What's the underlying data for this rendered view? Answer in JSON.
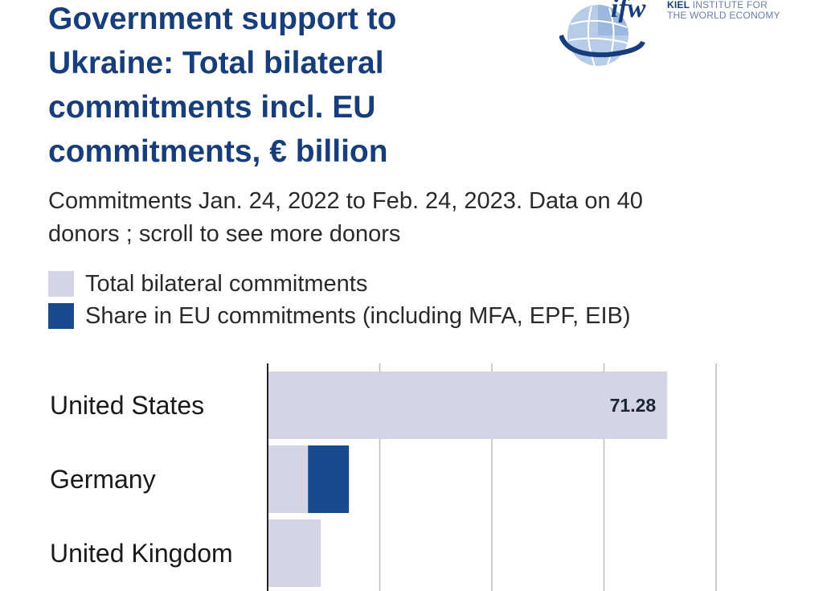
{
  "header": {
    "title_lines": [
      "Government support to",
      "Ukraine: Total bilateral",
      "commitments incl. EU",
      "commitments, € billion"
    ],
    "subtitle_lines": [
      "Commitments Jan. 24, 2022 to Feb. 24, 2023. Data on 40",
      "donors ; scroll to see more donors"
    ]
  },
  "logo": {
    "word": "ifw",
    "line1_bold": "KIEL",
    "line1_rest": " INSTITUTE FOR",
    "line2": "THE WORLD ECONOMY"
  },
  "legend": [
    {
      "label": "Total bilateral commitments",
      "color": "#d3d5e6"
    },
    {
      "label": "Share in EU commitments (including MFA, EPF, EIB)",
      "color": "#1a4a8e"
    }
  ],
  "chart_data": {
    "type": "bar",
    "orientation": "horizontal",
    "stacked": true,
    "categories": [
      "United States",
      "Germany",
      "United Kingdom"
    ],
    "series": [
      {
        "name": "Total bilateral commitments",
        "values": [
          71.28,
          7.2,
          9.5
        ],
        "color": "#d3d5e6"
      },
      {
        "name": "Share in EU commitments (including MFA, EPF, EIB)",
        "values": [
          0,
          7.3,
          0
        ],
        "color": "#1a4a8e"
      }
    ],
    "data_labels": [
      "71.28",
      "",
      ""
    ],
    "xlim": [
      0,
      80
    ],
    "gridlines": [
      20,
      40,
      60,
      80
    ],
    "grid": true
  }
}
